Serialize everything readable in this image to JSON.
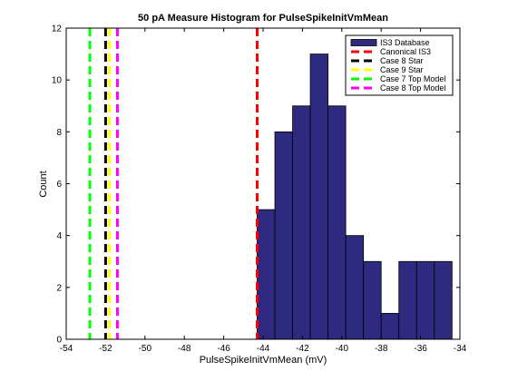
{
  "chart_data": {
    "type": "bar",
    "title": "50 pA Measure Histogram for PulseSpikeInitVmMean",
    "xlabel": "PulseSpikeInitVmMean (mV)",
    "ylabel": "Count",
    "xlim": [
      -54,
      -34
    ],
    "ylim": [
      0,
      12
    ],
    "x_ticks": [
      "-54",
      "-52",
      "-50",
      "-48",
      "-46",
      "-44",
      "-42",
      "-40",
      "-38",
      "-36",
      "-34"
    ],
    "y_ticks": [
      "0",
      "2",
      "4",
      "6",
      "8",
      "10",
      "12"
    ],
    "grid": false,
    "legend_position": "top-right",
    "histogram": {
      "name": "IS3 Database",
      "color": "#2e2a7f",
      "bin_edges": [
        -44.3,
        -43.4,
        -42.5,
        -41.6,
        -40.7,
        -39.8,
        -38.9,
        -38.0,
        -37.1,
        -36.2,
        -35.3,
        -34.4
      ],
      "counts": [
        5,
        8,
        9,
        11,
        9,
        4,
        3,
        1,
        3,
        3,
        3
      ]
    },
    "reference_lines": [
      {
        "name": "Canonical IS3",
        "x": -44.3,
        "color": "#ff0000"
      },
      {
        "name": "Case 8 Star",
        "x": -52.0,
        "color": "#000000"
      },
      {
        "name": "Case 9 Star",
        "x": -51.8,
        "color": "#ffff00"
      },
      {
        "name": "Case 7 Top Model",
        "x": -52.8,
        "color": "#00ff00"
      },
      {
        "name": "Case 8 Top Model",
        "x": -51.4,
        "color": "#ff00ff"
      }
    ]
  }
}
